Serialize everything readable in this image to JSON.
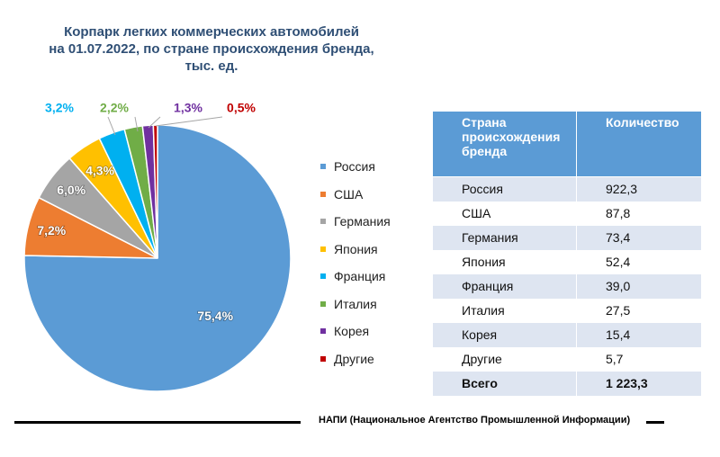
{
  "title": {
    "line1": "Корпарк легких коммерческих автомобилей",
    "line2": "на 01.07.2022, по стране происхождения бренда,",
    "line3": "тыс. ед."
  },
  "chart_data": {
    "type": "pie",
    "title": "Корпарк легких коммерческих автомобилей на 01.07.2022, по стране происхождения бренда, тыс. ед.",
    "categories": [
      "Россия",
      "США",
      "Германия",
      "Япония",
      "Франция",
      "Италия",
      "Корея",
      "Другие"
    ],
    "values": [
      75.4,
      7.2,
      6.0,
      4.3,
      3.2,
      2.2,
      1.3,
      0.5
    ],
    "value_labels": [
      "75,4%",
      "7,2%",
      "6,0%",
      "4,3%",
      "3,2%",
      "2,2%",
      "1,3%",
      "0,5%"
    ],
    "colors": [
      "#5b9bd5",
      "#ed7d31",
      "#a5a5a5",
      "#ffc000",
      "#00b0f0",
      "#70ad47",
      "#7030a0",
      "#c00000"
    ],
    "legend_position": "right"
  },
  "table": {
    "headers": [
      "Страна происхождения бренда",
      "Количество"
    ],
    "rows": [
      [
        "Россия",
        "922,3"
      ],
      [
        "США",
        "87,8"
      ],
      [
        "Германия",
        "73,4"
      ],
      [
        "Япония",
        "52,4"
      ],
      [
        "Франция",
        "39,0"
      ],
      [
        "Италия",
        "27,5"
      ],
      [
        "Корея",
        "15,4"
      ],
      [
        "Другие",
        "5,7"
      ]
    ],
    "total": [
      "Всего",
      "1 223,3"
    ]
  },
  "footer": "НАПИ (Национальное Агентство Промышленной Информации)"
}
